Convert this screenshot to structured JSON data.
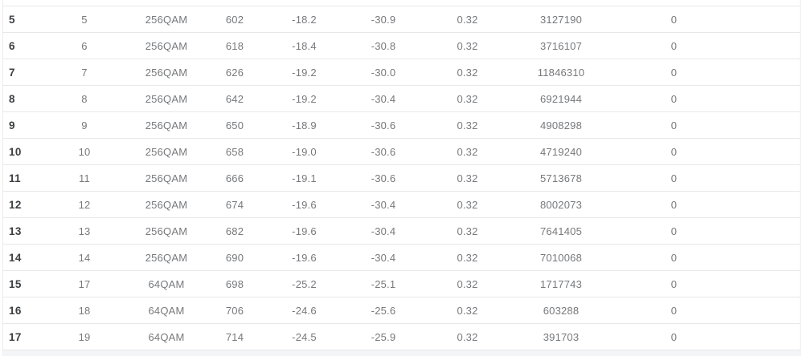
{
  "table": {
    "rows": [
      {
        "cells": [
          "5",
          "5",
          "256QAM",
          "602",
          "-18.2",
          "-30.9",
          "0.32",
          "3127190",
          "0"
        ]
      },
      {
        "cells": [
          "6",
          "6",
          "256QAM",
          "618",
          "-18.4",
          "-30.8",
          "0.32",
          "3716107",
          "0"
        ]
      },
      {
        "cells": [
          "7",
          "7",
          "256QAM",
          "626",
          "-19.2",
          "-30.0",
          "0.32",
          "11846310",
          "0"
        ]
      },
      {
        "cells": [
          "8",
          "8",
          "256QAM",
          "642",
          "-19.2",
          "-30.4",
          "0.32",
          "6921944",
          "0"
        ]
      },
      {
        "cells": [
          "9",
          "9",
          "256QAM",
          "650",
          "-18.9",
          "-30.6",
          "0.32",
          "4908298",
          "0"
        ]
      },
      {
        "cells": [
          "10",
          "10",
          "256QAM",
          "658",
          "-19.0",
          "-30.6",
          "0.32",
          "4719240",
          "0"
        ]
      },
      {
        "cells": [
          "11",
          "11",
          "256QAM",
          "666",
          "-19.1",
          "-30.6",
          "0.32",
          "5713678",
          "0"
        ]
      },
      {
        "cells": [
          "12",
          "12",
          "256QAM",
          "674",
          "-19.6",
          "-30.4",
          "0.32",
          "8002073",
          "0"
        ]
      },
      {
        "cells": [
          "13",
          "13",
          "256QAM",
          "682",
          "-19.6",
          "-30.4",
          "0.32",
          "7641405",
          "0"
        ]
      },
      {
        "cells": [
          "14",
          "14",
          "256QAM",
          "690",
          "-19.6",
          "-30.4",
          "0.32",
          "7010068",
          "0"
        ]
      },
      {
        "cells": [
          "15",
          "17",
          "64QAM",
          "698",
          "-25.2",
          "-25.1",
          "0.32",
          "1717743",
          "0"
        ]
      },
      {
        "cells": [
          "16",
          "18",
          "64QAM",
          "706",
          "-24.6",
          "-25.6",
          "0.32",
          "603288",
          "0"
        ]
      },
      {
        "cells": [
          "17",
          "19",
          "64QAM",
          "714",
          "-24.5",
          "-25.9",
          "0.32",
          "391703",
          "0"
        ]
      }
    ]
  },
  "colors": {
    "row_border": "#e7e8e9",
    "cell_text": "#77797c",
    "index_text": "#3d4043",
    "partial_row_bg": "#f4f5f7"
  }
}
